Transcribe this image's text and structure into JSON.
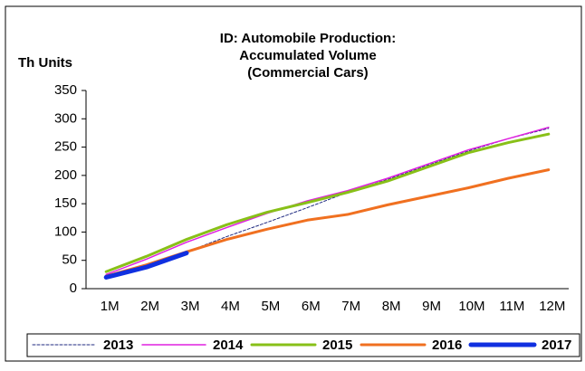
{
  "chart_data": {
    "type": "line",
    "title": [
      "ID: Automobile  Production:",
      "Accumulated Volume",
      "(Commercial Cars)"
    ],
    "y_label": "Th Units",
    "categories": [
      "1M",
      "2M",
      "3M",
      "4M",
      "5M",
      "6M",
      "7M",
      "8M",
      "9M",
      "10M",
      "11M",
      "12M"
    ],
    "series": [
      {
        "name": "2013",
        "color": "#1f2a80",
        "width": 1,
        "dash": true,
        "values": [
          20,
          38,
          65,
          92,
          117,
          143,
          170,
          193,
          218,
          243,
          265,
          283
        ]
      },
      {
        "name": "2014",
        "color": "#e020e0",
        "width": 1.5,
        "dash": false,
        "values": [
          25,
          52,
          82,
          108,
          133,
          155,
          173,
          195,
          220,
          245,
          265,
          285
        ]
      },
      {
        "name": "2015",
        "color": "#88c018",
        "width": 3,
        "dash": false,
        "values": [
          30,
          57,
          87,
          113,
          135,
          152,
          170,
          190,
          215,
          240,
          258,
          273
        ]
      },
      {
        "name": "2016",
        "color": "#f07020",
        "width": 3,
        "dash": false,
        "values": [
          22,
          42,
          65,
          87,
          105,
          121,
          131,
          148,
          163,
          178,
          195,
          210
        ]
      },
      {
        "name": "2017",
        "color": "#1030e0",
        "width": 5,
        "dash": false,
        "values": [
          20,
          38,
          63,
          null,
          null,
          null,
          null,
          null,
          null,
          null,
          null,
          null
        ]
      }
    ],
    "ylim": [
      0,
      350
    ],
    "yticks": [
      0,
      50,
      100,
      150,
      200,
      250,
      300,
      350
    ],
    "legend": "bottom"
  }
}
